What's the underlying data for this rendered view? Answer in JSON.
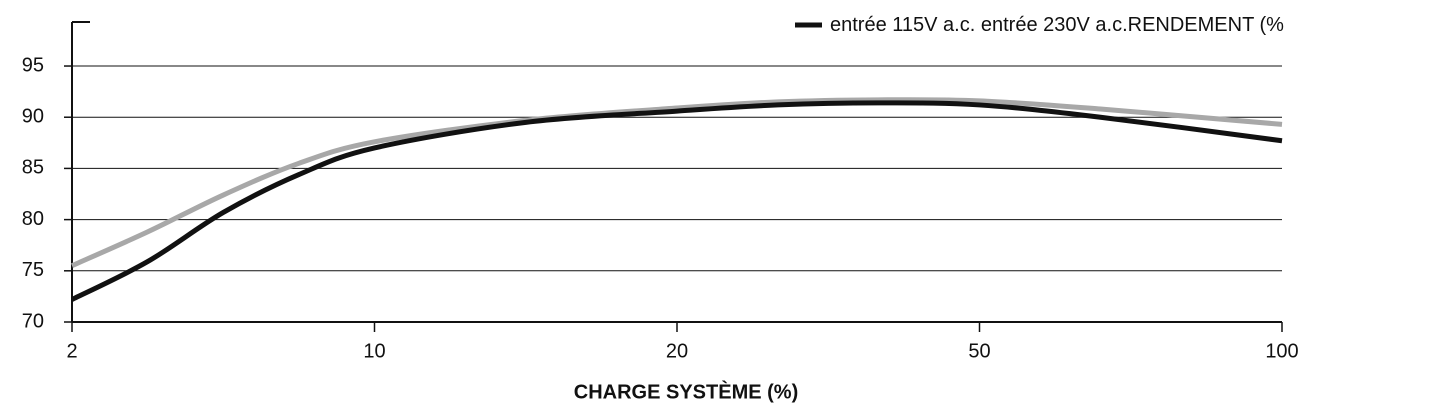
{
  "chart_data": {
    "type": "line",
    "x_label": "CHARGE SYSTÈME (%)",
    "y_label": "RENDEMENT (%",
    "x": [
      2,
      4,
      6,
      8,
      10,
      15,
      20,
      30,
      40,
      50,
      70,
      100
    ],
    "series": [
      {
        "name": "entrée 115V a.c.",
        "color": "#111111",
        "values": [
          72.2,
          75.9,
          80.7,
          84.4,
          87.0,
          89.5,
          90.6,
          91.2,
          91.4,
          91.2,
          90.0,
          87.7
        ]
      },
      {
        "name": "entrée 230V a.c.",
        "color": "#a8a8a8",
        "values": [
          75.5,
          78.8,
          82.4,
          85.5,
          87.6,
          89.7,
          90.9,
          91.5,
          91.7,
          91.6,
          90.8,
          89.3
        ]
      }
    ],
    "xlim": [
      2,
      100
    ],
    "xticks": [
      2,
      10,
      20,
      50,
      100
    ],
    "ylim": [
      70,
      99.3
    ],
    "yticks": [
      70,
      75,
      80,
      85,
      90,
      95
    ],
    "grid": true
  }
}
